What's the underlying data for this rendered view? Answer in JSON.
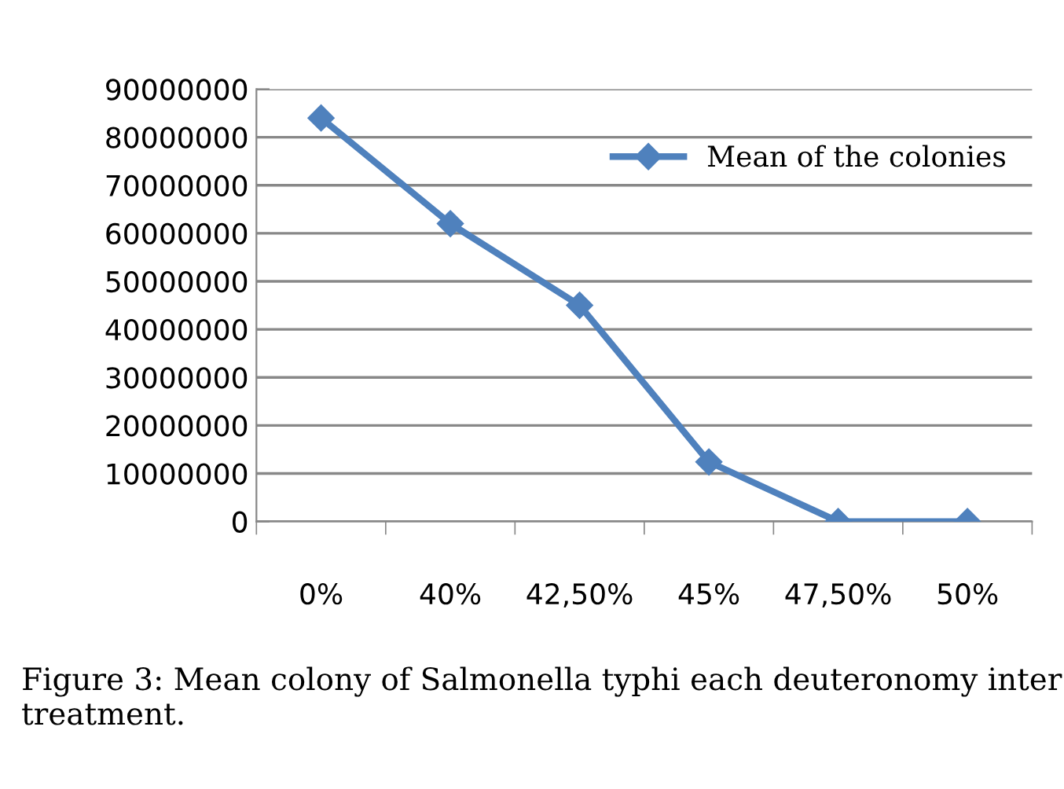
{
  "chart_data": {
    "type": "line",
    "categories": [
      "0%",
      "40%",
      "42,50%",
      "45%",
      "47,50%",
      "50%"
    ],
    "series": [
      {
        "name": "Mean of the colonies",
        "color": "#4f81bd",
        "values": [
          84000000,
          62000000,
          45000000,
          12400000,
          0,
          0
        ]
      }
    ],
    "ylim": [
      0,
      90000000
    ],
    "yticks": [
      0,
      10000000,
      20000000,
      30000000,
      40000000,
      50000000,
      60000000,
      70000000,
      80000000,
      90000000
    ],
    "grid": "y",
    "legend": "top right",
    "marker": "diamond",
    "line_style": "solid",
    "annotations": [
      "Figure 3: Mean colony of Salmonella typhi each deuteronomy inter treatment."
    ]
  }
}
